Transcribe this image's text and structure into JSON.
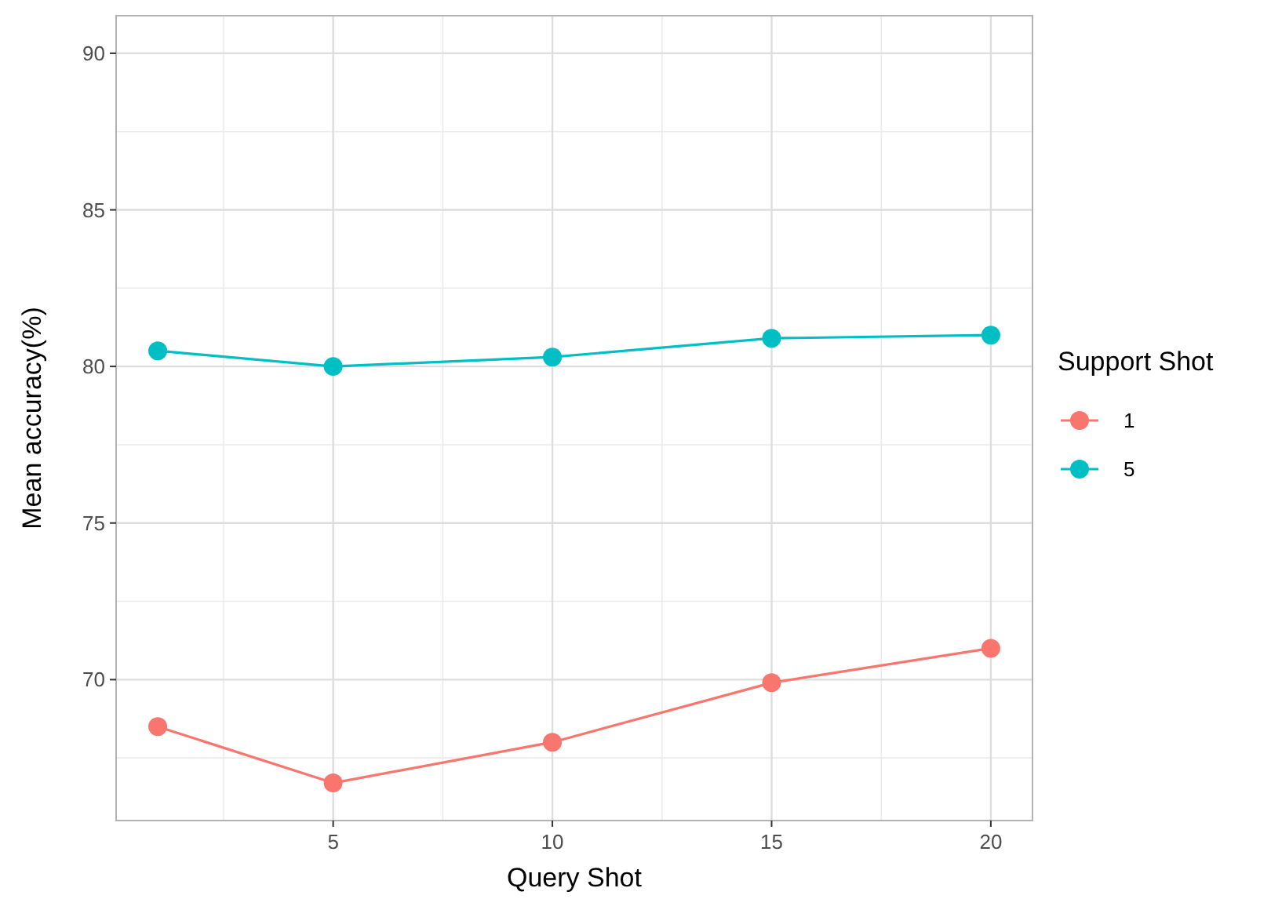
{
  "chart_data": {
    "type": "line",
    "xlabel": "Query Shot",
    "ylabel": "Mean accuracy(%)",
    "legend_title": "Support Shot",
    "x": [
      1,
      5,
      10,
      15,
      20
    ],
    "series": [
      {
        "name": "1",
        "color": "#f8766d",
        "values": [
          68.5,
          66.7,
          68.0,
          69.9,
          71.0
        ]
      },
      {
        "name": "5",
        "color": "#00bfc4",
        "values": [
          80.5,
          80.0,
          80.3,
          80.9,
          81.0
        ]
      }
    ],
    "xlim": [
      0.05,
      20.95
    ],
    "xticks": [
      5,
      10,
      15,
      20
    ],
    "ylim": [
      65.5,
      91.2
    ],
    "yticks": [
      70,
      75,
      80,
      85,
      90
    ],
    "grid": true,
    "legend": "right",
    "marker": "circle",
    "line_style": "solid"
  }
}
